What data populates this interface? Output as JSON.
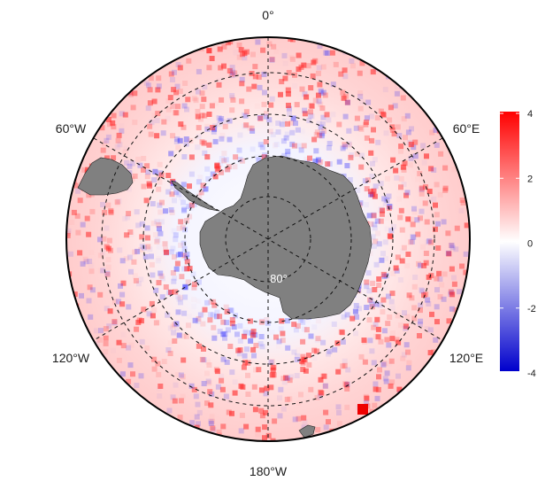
{
  "map": {
    "projection": "south-polar-stereographic",
    "longitude_labels": {
      "top": "0°",
      "upper_left": "60°W",
      "upper_right": "60°E",
      "lower_left": "120°W",
      "lower_right": "120°E",
      "bottom": "180°W"
    },
    "latitude_label": "80°",
    "land_color": "#808080",
    "ocean_field_note_colors": {
      "positive": "#ff0000",
      "zero": "#ffffff",
      "negative": "#0000ff"
    }
  },
  "colorbar": {
    "min": -4,
    "max": 4,
    "ticks": [
      "4",
      "2",
      "0",
      "-2",
      "-4"
    ],
    "tick_values": [
      4,
      2,
      0,
      -2,
      -4
    ],
    "colors": {
      "high": "#ff0000",
      "mid": "#ffffff",
      "low": "#0000cc"
    }
  }
}
